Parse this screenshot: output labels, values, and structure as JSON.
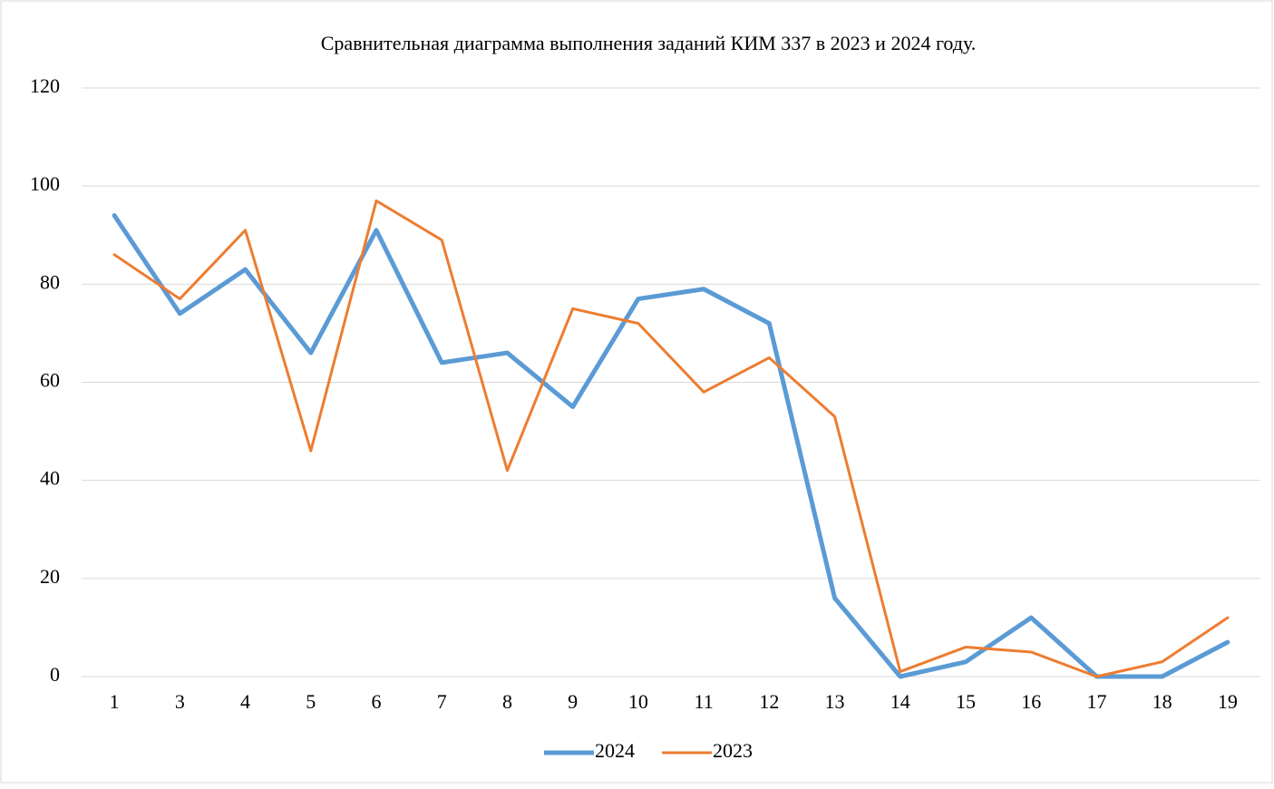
{
  "chart_data": {
    "type": "line",
    "title": "Сравнительная диаграмма выполнения заданий КИМ 337 в 2023 и 2024 году.",
    "categories": [
      "1",
      "3",
      "4",
      "5",
      "6",
      "7",
      "8",
      "9",
      "10",
      "11",
      "12",
      "13",
      "14",
      "15",
      "16",
      "17",
      "18",
      "19"
    ],
    "series": [
      {
        "name": "2024",
        "color": "#5b9bd5",
        "width": 5,
        "values": [
          94,
          74,
          83,
          66,
          91,
          64,
          66,
          55,
          77,
          79,
          72,
          16,
          0,
          3,
          12,
          0,
          0,
          7
        ]
      },
      {
        "name": "2023",
        "color": "#ed7d31",
        "width": 3,
        "values": [
          86,
          77,
          91,
          46,
          97,
          89,
          42,
          75,
          72,
          58,
          65,
          53,
          1,
          6,
          5,
          0,
          3,
          12
        ]
      }
    ],
    "ylim": [
      0,
      120
    ],
    "yticks": [
      0,
      20,
      40,
      60,
      80,
      100,
      120
    ],
    "grid": true,
    "legend": "bottom"
  }
}
